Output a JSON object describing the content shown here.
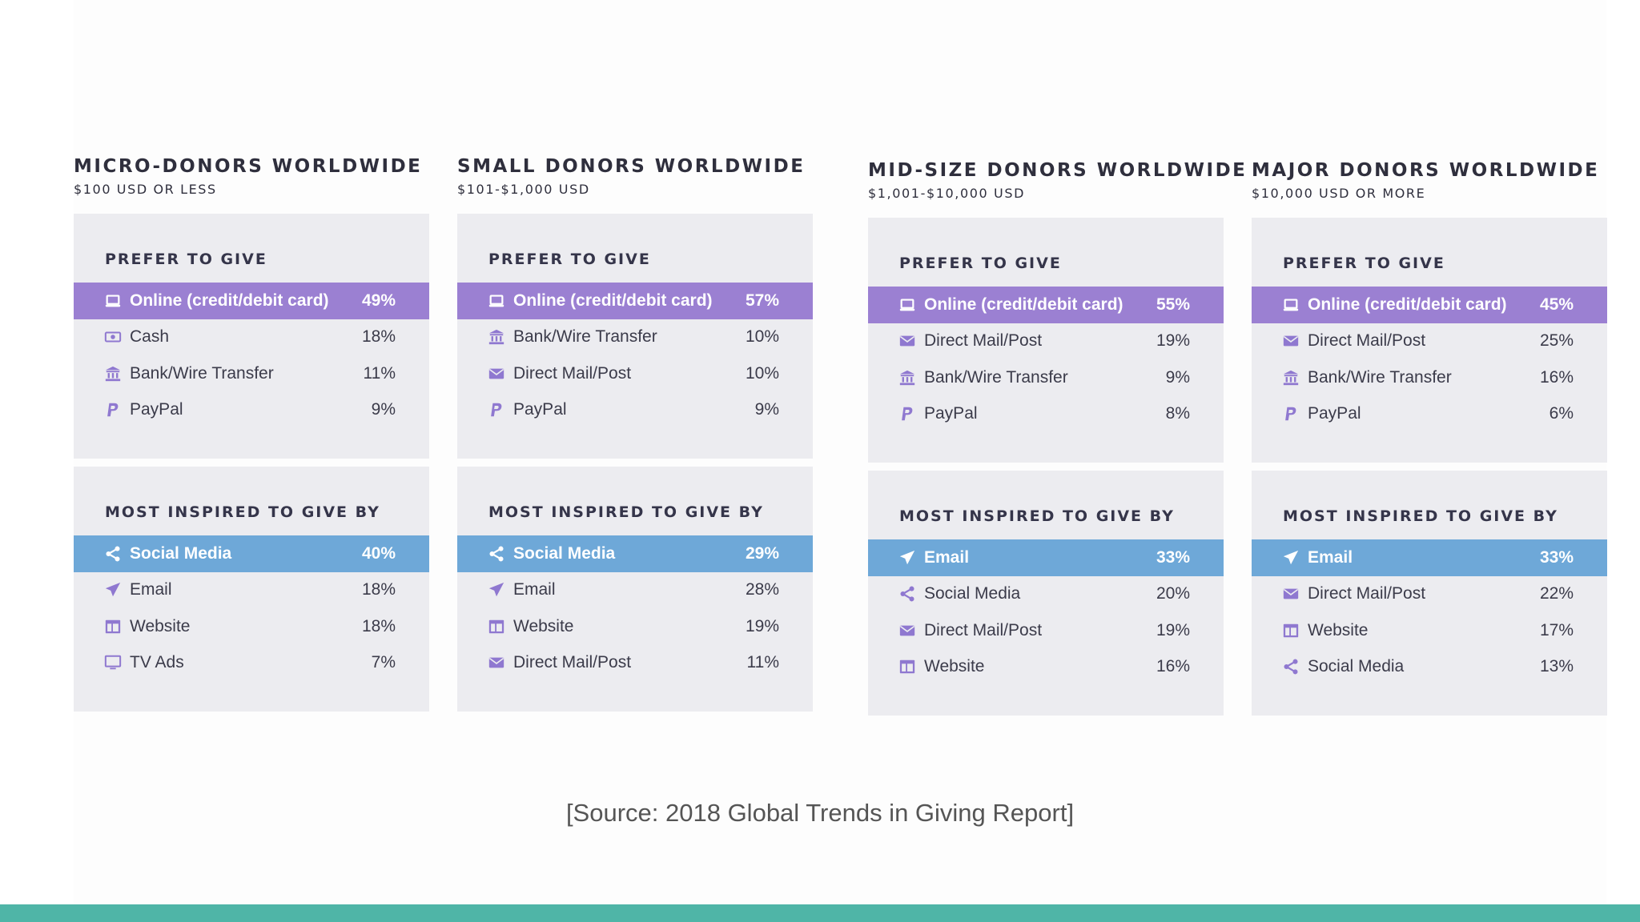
{
  "source": "[Source: 2018 Global Trends in Giving Report]",
  "colors": {
    "prefer_highlight": "#9b80d2",
    "inspired_highlight": "#6ea8d8",
    "panel": "#ececf0",
    "footer": "#4fb5a7",
    "icon": "#8f78d0"
  },
  "columns": [
    {
      "title": "MICRO-DONORS WORLDWIDE",
      "subtitle": "$100 USD OR LESS",
      "prefer": {
        "heading": "PREFER TO GIVE",
        "rows": [
          {
            "icon": "laptop-icon",
            "label": "Online (credit/debit card)",
            "value": "49%"
          },
          {
            "icon": "cash-icon",
            "label": "Cash",
            "value": "18%"
          },
          {
            "icon": "bank-icon",
            "label": "Bank/Wire Transfer",
            "value": "11%"
          },
          {
            "icon": "paypal-icon",
            "label": "PayPal",
            "value": "9%"
          }
        ]
      },
      "inspired": {
        "heading": "MOST INSPIRED TO GIVE BY",
        "rows": [
          {
            "icon": "share-icon",
            "label": "Social Media",
            "value": "40%"
          },
          {
            "icon": "paper-plane-icon",
            "label": "Email",
            "value": "18%"
          },
          {
            "icon": "website-icon",
            "label": "Website",
            "value": "18%"
          },
          {
            "icon": "tv-icon",
            "label": "TV Ads",
            "value": "7%"
          }
        ]
      }
    },
    {
      "title": "SMALL DONORS WORLDWIDE",
      "subtitle": "$101-$1,000 USD",
      "prefer": {
        "heading": "PREFER TO GIVE",
        "rows": [
          {
            "icon": "laptop-icon",
            "label": "Online (credit/debit card)",
            "value": "57%"
          },
          {
            "icon": "bank-icon",
            "label": "Bank/Wire Transfer",
            "value": "10%"
          },
          {
            "icon": "envelope-icon",
            "label": "Direct Mail/Post",
            "value": "10%"
          },
          {
            "icon": "paypal-icon",
            "label": "PayPal",
            "value": "9%"
          }
        ]
      },
      "inspired": {
        "heading": "MOST INSPIRED TO GIVE BY",
        "rows": [
          {
            "icon": "share-icon",
            "label": "Social Media",
            "value": "29%"
          },
          {
            "icon": "paper-plane-icon",
            "label": "Email",
            "value": "28%"
          },
          {
            "icon": "website-icon",
            "label": "Website",
            "value": "19%"
          },
          {
            "icon": "envelope-icon",
            "label": "Direct Mail/Post",
            "value": "11%"
          }
        ]
      }
    },
    {
      "title": "MID-SIZE DONORS WORLDWIDE",
      "subtitle": "$1,001-$10,000 USD",
      "prefer": {
        "heading": "PREFER TO GIVE",
        "rows": [
          {
            "icon": "laptop-icon",
            "label": "Online (credit/debit card)",
            "value": "55%"
          },
          {
            "icon": "envelope-icon",
            "label": "Direct Mail/Post",
            "value": "19%"
          },
          {
            "icon": "bank-icon",
            "label": "Bank/Wire Transfer",
            "value": "9%"
          },
          {
            "icon": "paypal-icon",
            "label": "PayPal",
            "value": "8%"
          }
        ]
      },
      "inspired": {
        "heading": "MOST INSPIRED TO GIVE BY",
        "rows": [
          {
            "icon": "paper-plane-icon",
            "label": "Email",
            "value": "33%"
          },
          {
            "icon": "share-icon",
            "label": "Social Media",
            "value": "20%"
          },
          {
            "icon": "envelope-icon",
            "label": "Direct Mail/Post",
            "value": "19%"
          },
          {
            "icon": "website-icon",
            "label": "Website",
            "value": "16%"
          }
        ]
      }
    },
    {
      "title": "MAJOR DONORS WORLDWIDE",
      "subtitle": "$10,000 USD OR MORE",
      "prefer": {
        "heading": "PREFER TO GIVE",
        "rows": [
          {
            "icon": "laptop-icon",
            "label": "Online (credit/debit card)",
            "value": "45%"
          },
          {
            "icon": "envelope-icon",
            "label": "Direct Mail/Post",
            "value": "25%"
          },
          {
            "icon": "bank-icon",
            "label": "Bank/Wire Transfer",
            "value": "16%"
          },
          {
            "icon": "paypal-icon",
            "label": "PayPal",
            "value": "6%"
          }
        ]
      },
      "inspired": {
        "heading": "MOST INSPIRED TO GIVE BY",
        "rows": [
          {
            "icon": "paper-plane-icon",
            "label": "Email",
            "value": "33%"
          },
          {
            "icon": "envelope-icon",
            "label": "Direct Mail/Post",
            "value": "22%"
          },
          {
            "icon": "website-icon",
            "label": "Website",
            "value": "17%"
          },
          {
            "icon": "share-icon",
            "label": "Social Media",
            "value": "13%"
          }
        ]
      }
    }
  ]
}
